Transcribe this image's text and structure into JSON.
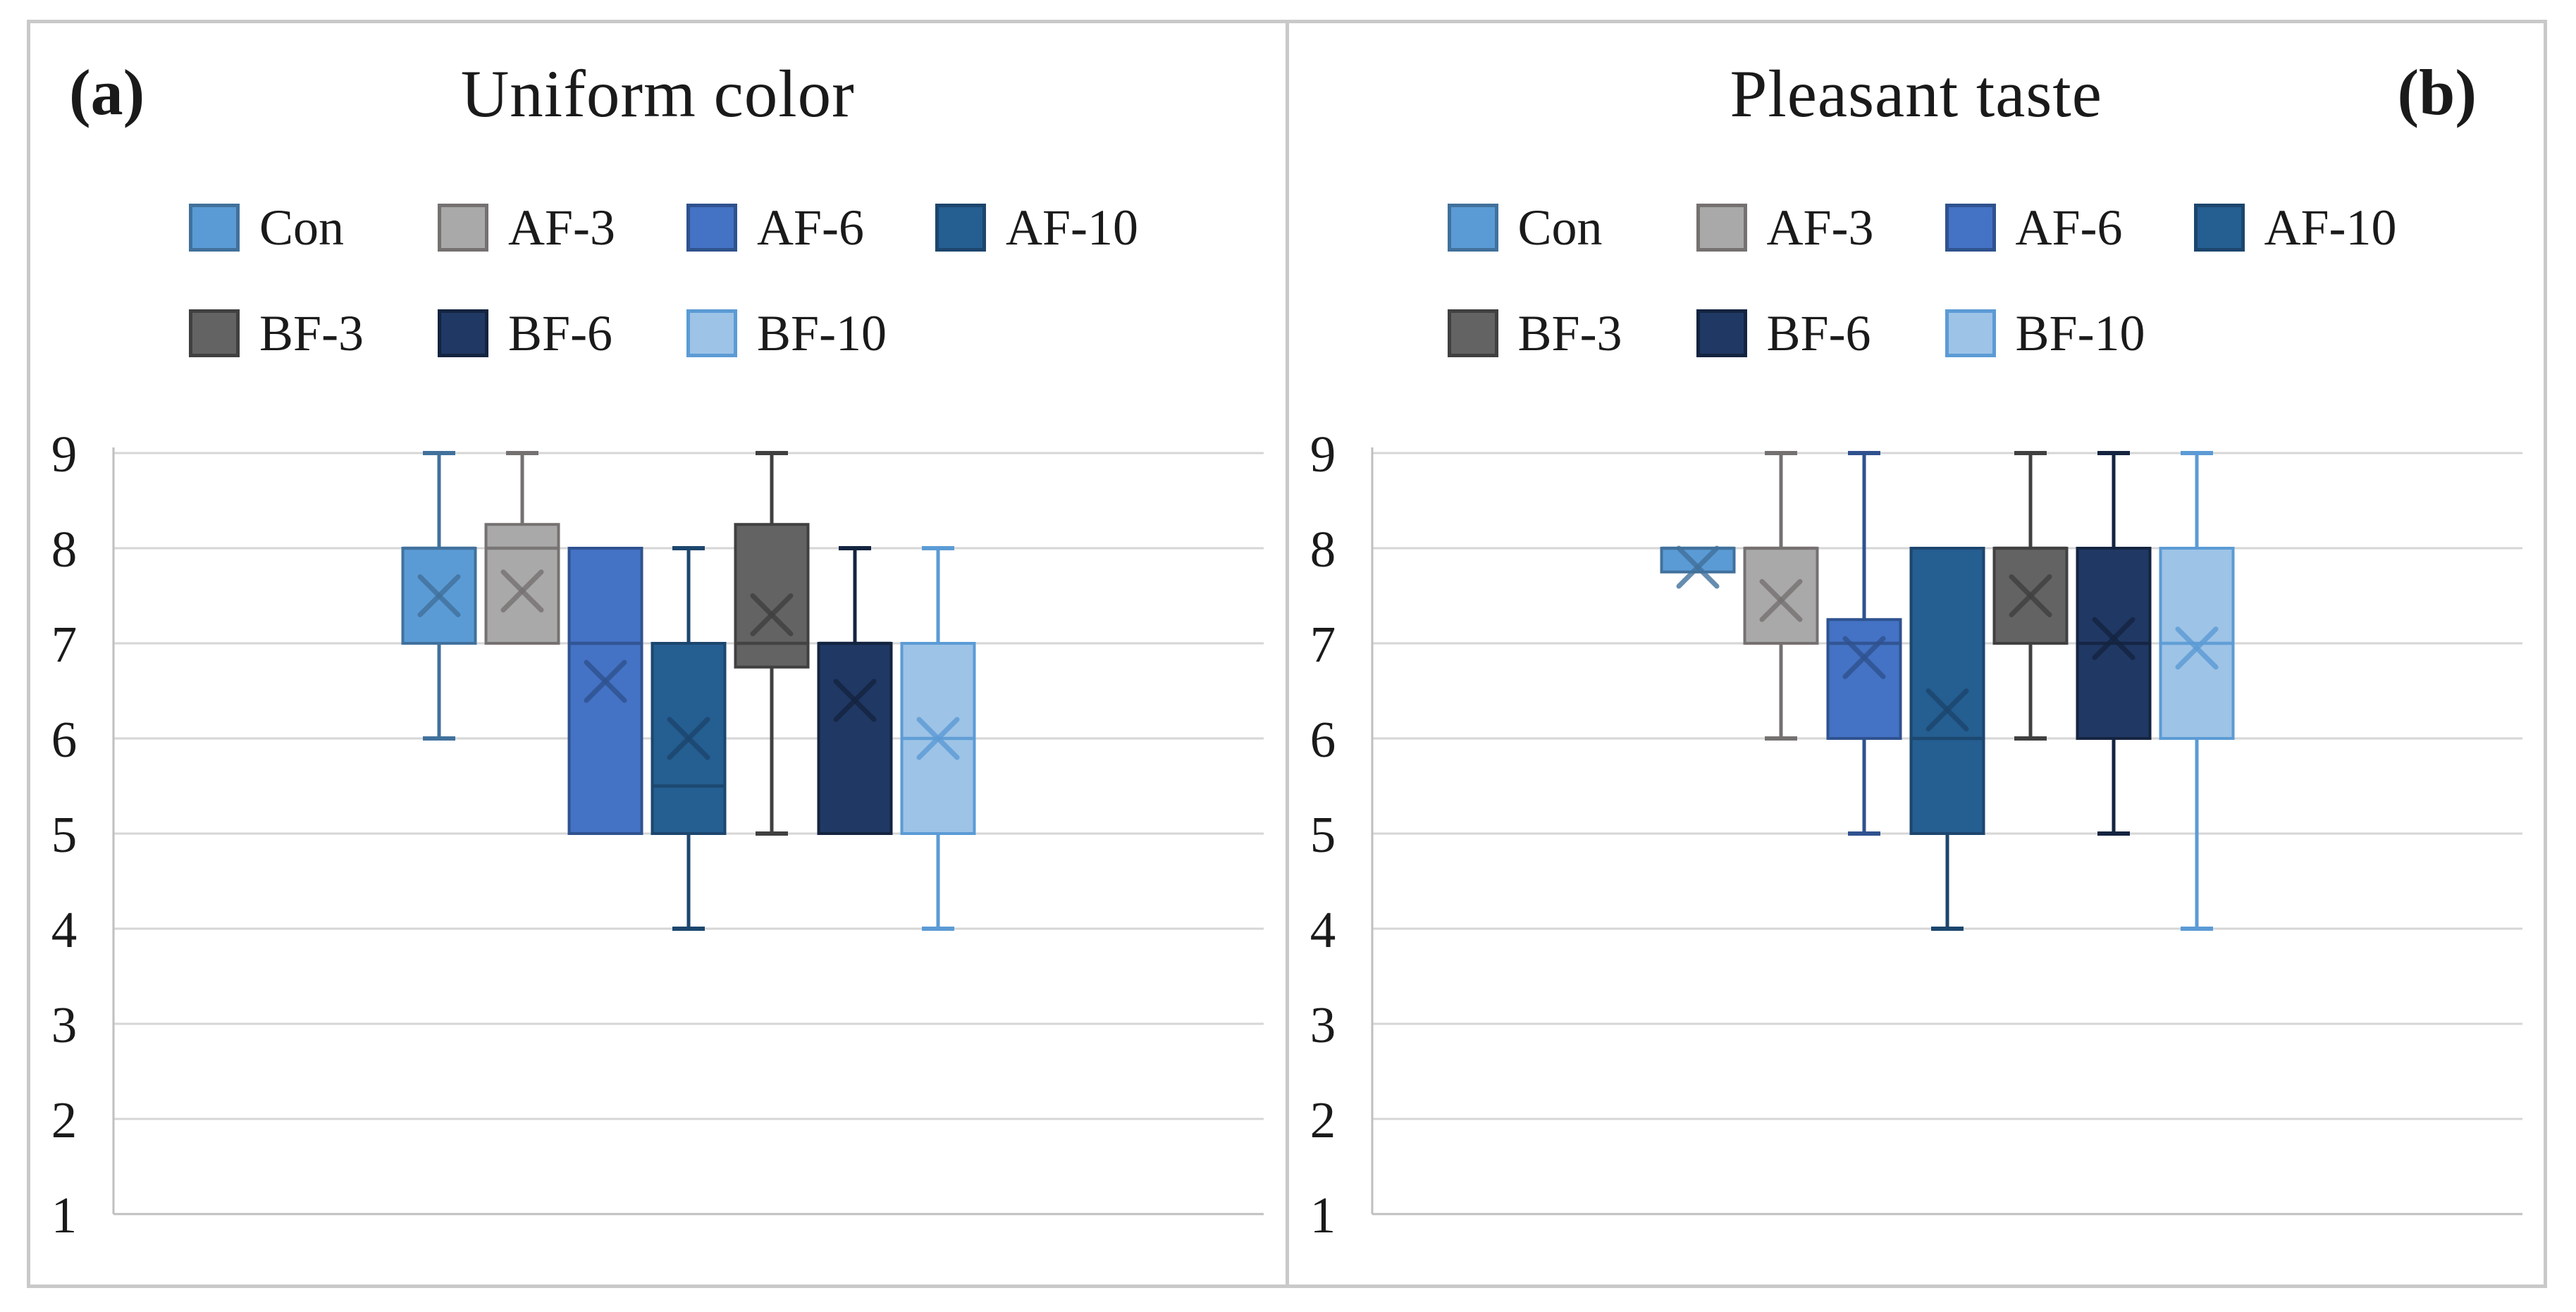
{
  "figure": {
    "background_color": "#FFFFFF",
    "border_color": "#C9C9C9",
    "divider_color": "#C9C9C9"
  },
  "style": {
    "grid_color": "#D6D6D6",
    "axis_color": "#BFBFBF",
    "text_color": "#1A1A1A",
    "box_border_width": 4,
    "whisker_width": 5,
    "mean_marker": "x"
  },
  "chart_data": [
    {
      "type": "box",
      "corner_label": "(a)",
      "corner_side": "left",
      "title": "Uniform color",
      "y_axis": {
        "min": 1,
        "max": 9,
        "step": 1,
        "tick_labels": [
          "1",
          "2",
          "3",
          "4",
          "5",
          "6",
          "7",
          "8",
          "9"
        ]
      },
      "grid": true,
      "legend_position": "top",
      "legend_rows": [
        [
          "Con",
          "AF-3",
          "AF-6",
          "AF-10"
        ],
        [
          "BF-3",
          "BF-6",
          "BF-10"
        ]
      ],
      "series": [
        {
          "name": "Con",
          "fill": "#5B9BD5",
          "line": "#41719C",
          "whisker_low": 6,
          "q1": 7,
          "median": 8,
          "q3": 8,
          "whisker_high": 9,
          "mean": 7.5
        },
        {
          "name": "AF-3",
          "fill": "#A9A9A9",
          "line": "#767171",
          "whisker_low": 7,
          "q1": 7,
          "median": 8,
          "q3": 8.25,
          "whisker_high": 9,
          "mean": 7.55
        },
        {
          "name": "AF-6",
          "fill": "#4472C4",
          "line": "#2F528F",
          "whisker_low": 5,
          "q1": 5,
          "median": 7,
          "q3": 8,
          "whisker_high": 8,
          "mean": 6.6
        },
        {
          "name": "AF-10",
          "fill": "#255E91",
          "line": "#1C466D",
          "whisker_low": 4,
          "q1": 5,
          "median": 5.5,
          "q3": 7,
          "whisker_high": 8,
          "mean": 6.0
        },
        {
          "name": "BF-3",
          "fill": "#636363",
          "line": "#404040",
          "whisker_low": 5,
          "q1": 6.75,
          "median": 7,
          "q3": 8.25,
          "whisker_high": 9,
          "mean": 7.3
        },
        {
          "name": "BF-6",
          "fill": "#203864",
          "line": "#142440",
          "whisker_low": 5,
          "q1": 5,
          "median": 7,
          "q3": 7,
          "whisker_high": 8,
          "mean": 6.4
        },
        {
          "name": "BF-10",
          "fill": "#9DC3E6",
          "line": "#5B9BD5",
          "whisker_low": 4,
          "q1": 5,
          "median": 6,
          "q3": 7,
          "whisker_high": 8,
          "mean": 6.0
        }
      ]
    },
    {
      "type": "box",
      "corner_label": "(b)",
      "corner_side": "right",
      "title": "Pleasant taste",
      "y_axis": {
        "min": 1,
        "max": 9,
        "step": 1,
        "tick_labels": [
          "1",
          "2",
          "3",
          "4",
          "5",
          "6",
          "7",
          "8",
          "9"
        ]
      },
      "grid": true,
      "legend_position": "top",
      "legend_rows": [
        [
          "Con",
          "AF-3",
          "AF-6",
          "AF-10"
        ],
        [
          "BF-3",
          "BF-6",
          "BF-10"
        ]
      ],
      "series": [
        {
          "name": "Con",
          "fill": "#5B9BD5",
          "line": "#41719C",
          "whisker_low": 7.75,
          "q1": 7.75,
          "median": 8,
          "q3": 8,
          "whisker_high": 8,
          "mean": 7.8
        },
        {
          "name": "AF-3",
          "fill": "#A9A9A9",
          "line": "#767171",
          "whisker_low": 6,
          "q1": 7,
          "median": 8,
          "q3": 8,
          "whisker_high": 9,
          "mean": 7.45
        },
        {
          "name": "AF-6",
          "fill": "#4472C4",
          "line": "#2F528F",
          "whisker_low": 5,
          "q1": 6,
          "median": 7,
          "q3": 7.25,
          "whisker_high": 9,
          "mean": 6.85
        },
        {
          "name": "AF-10",
          "fill": "#255E91",
          "line": "#1C466D",
          "whisker_low": 4,
          "q1": 5,
          "median": 6,
          "q3": 8,
          "whisker_high": 8,
          "mean": 6.3
        },
        {
          "name": "BF-3",
          "fill": "#636363",
          "line": "#404040",
          "whisker_low": 6,
          "q1": 7,
          "median": 8,
          "q3": 8,
          "whisker_high": 9,
          "mean": 7.5
        },
        {
          "name": "BF-6",
          "fill": "#203864",
          "line": "#142440",
          "whisker_low": 5,
          "q1": 6,
          "median": 7,
          "q3": 8,
          "whisker_high": 9,
          "mean": 7.05
        },
        {
          "name": "BF-10",
          "fill": "#9DC3E6",
          "line": "#5B9BD5",
          "whisker_low": 4,
          "q1": 6,
          "median": 7,
          "q3": 8,
          "whisker_high": 9,
          "mean": 6.95
        }
      ]
    }
  ]
}
